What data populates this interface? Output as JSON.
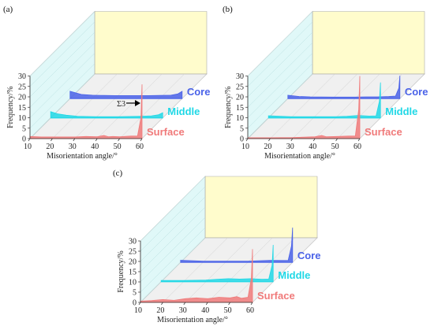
{
  "colors": {
    "core": "#4a62e8",
    "middle": "#20d8e6",
    "surface": "#f07a7a",
    "back_wall": "#fffccc",
    "side_wall": "#d6f6f6",
    "floor": "#f0f0f0"
  },
  "chart_data": [
    {
      "type": "area",
      "panel_label": "(a)",
      "xlabel": "Misorientation angle/°",
      "ylabel": "Frequency/%",
      "xticks": [
        10,
        20,
        30,
        40,
        50,
        60
      ],
      "yticks": [
        0,
        5,
        10,
        15,
        20,
        25,
        30
      ],
      "ylim": [
        0,
        30
      ],
      "xlim": [
        10,
        60
      ],
      "annotation": "Σ3",
      "series": [
        {
          "name": "Core",
          "x": [
            10,
            15,
            20,
            25,
            30,
            35,
            40,
            45,
            50,
            55,
            58,
            60
          ],
          "values": [
            3.5,
            2.0,
            1.6,
            1.5,
            1.4,
            1.4,
            1.4,
            1.4,
            1.5,
            1.6,
            2.2,
            3.5
          ]
        },
        {
          "name": "Middle",
          "x": [
            10,
            13,
            17,
            22,
            30,
            40,
            45,
            50,
            55,
            58,
            60
          ],
          "values": [
            3.0,
            2.0,
            1.3,
            0.8,
            0.6,
            0.6,
            0.7,
            0.8,
            1.0,
            1.5,
            2.5
          ]
        },
        {
          "name": "Surface",
          "x": [
            10,
            15,
            20,
            30,
            35,
            40,
            43,
            45,
            47,
            50,
            55,
            58,
            59.5,
            60
          ],
          "values": [
            1.0,
            0.8,
            0.8,
            0.8,
            1.0,
            0.9,
            1.5,
            0.9,
            1.0,
            0.9,
            1.2,
            1.3,
            10.0,
            26.0
          ]
        }
      ]
    },
    {
      "type": "area",
      "panel_label": "(b)",
      "xlabel": "Misorientation angle/°",
      "ylabel": "Frequency/%",
      "xticks": [
        10,
        20,
        30,
        40,
        50,
        60
      ],
      "yticks": [
        0,
        5,
        10,
        15,
        20,
        25,
        30
      ],
      "ylim": [
        0,
        30
      ],
      "xlim": [
        10,
        60
      ],
      "series": [
        {
          "name": "Core",
          "x": [
            10,
            15,
            20,
            30,
            40,
            45,
            50,
            55,
            58,
            59.5,
            60
          ],
          "values": [
            1.6,
            1.0,
            0.8,
            0.7,
            0.7,
            0.8,
            0.8,
            1.0,
            1.2,
            5.0,
            11.0
          ]
        },
        {
          "name": "Middle",
          "x": [
            10,
            20,
            30,
            40,
            45,
            50,
            55,
            58,
            59.5,
            60
          ],
          "values": [
            1.0,
            0.6,
            0.6,
            0.6,
            0.8,
            1.2,
            0.9,
            1.0,
            8.0,
            17.0
          ]
        },
        {
          "name": "Surface",
          "x": [
            10,
            20,
            30,
            35,
            40,
            43,
            45,
            50,
            55,
            58,
            59.5,
            60
          ],
          "values": [
            0.4,
            0.4,
            0.5,
            0.7,
            0.9,
            1.5,
            0.9,
            1.0,
            1.2,
            1.3,
            14.0,
            30.0
          ]
        }
      ]
    },
    {
      "type": "area",
      "panel_label": "(c)",
      "xlabel": "Misorientation angle/°",
      "ylabel": "Frequency/%",
      "xticks": [
        10,
        20,
        30,
        40,
        50,
        60
      ],
      "yticks": [
        0,
        5,
        10,
        15,
        20,
        25,
        30
      ],
      "ylim": [
        0,
        30
      ],
      "xlim": [
        10,
        60
      ],
      "series": [
        {
          "name": "Core",
          "x": [
            10,
            20,
            30,
            40,
            45,
            50,
            55,
            58,
            59.5,
            60
          ],
          "values": [
            1.0,
            0.6,
            0.6,
            0.6,
            0.8,
            1.0,
            0.9,
            1.0,
            8.0,
            17.0
          ]
        },
        {
          "name": "Middle",
          "x": [
            10,
            20,
            30,
            35,
            40,
            45,
            50,
            55,
            58,
            59.5,
            60
          ],
          "values": [
            0.6,
            0.6,
            0.8,
            1.2,
            1.5,
            1.3,
            1.5,
            1.2,
            1.3,
            8.0,
            18.0
          ]
        },
        {
          "name": "Surface",
          "x": [
            10,
            15,
            20,
            25,
            30,
            35,
            40,
            45,
            50,
            53,
            55,
            58,
            59.5,
            60
          ],
          "values": [
            0.6,
            0.9,
            1.4,
            1.0,
            1.8,
            2.2,
            1.8,
            2.5,
            2.2,
            2.8,
            2.0,
            2.5,
            12.0,
            26.0
          ]
        }
      ]
    }
  ]
}
